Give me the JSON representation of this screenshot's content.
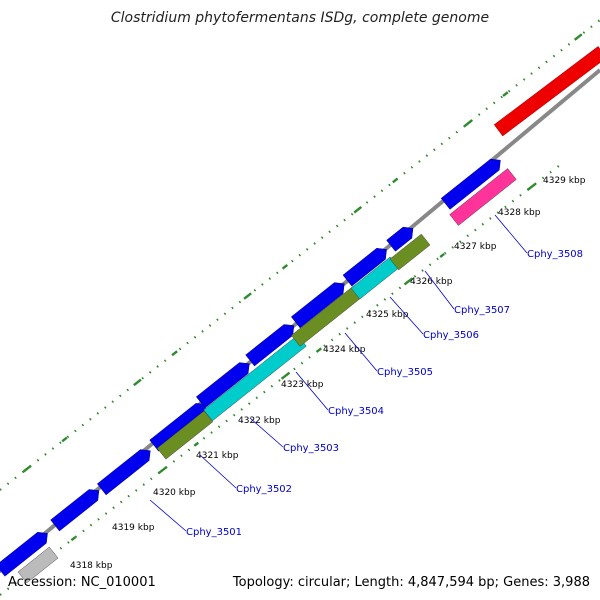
{
  "title": "Clostridium phytofermentans ISDg, complete genome",
  "footer": {
    "accession": "Accession: NC_010001",
    "topology": "Topology: circular; Length: 4,847,594 bp; Genes: 3,988"
  },
  "colors": {
    "cds_forward": "#0000ee",
    "cds_reverse": "#0000ee",
    "rrna": "#ee0000",
    "trna": "#ff3399",
    "cog_olive": "#6b8e23",
    "cog_cyan": "#00cccc",
    "cog_gray": "#bbbbbb",
    "backbone": "#888888",
    "gc_ticks": "#2e8b2e"
  },
  "tick_labels": [
    "4318 kbp",
    "4319 kbp",
    "4320 kbp",
    "4321 kbp",
    "4322 kbp",
    "4323 kbp",
    "4324 kbp",
    "4325 kbp",
    "4326 kbp",
    "4327 kbp",
    "4328 kbp",
    "4329 kbp"
  ],
  "gene_labels": [
    "Cphy_3501",
    "Cphy_3502",
    "Cphy_3503",
    "Cphy_3504",
    "Cphy_3505",
    "Cphy_3506",
    "Cphy_3507",
    "Cphy_3508"
  ]
}
